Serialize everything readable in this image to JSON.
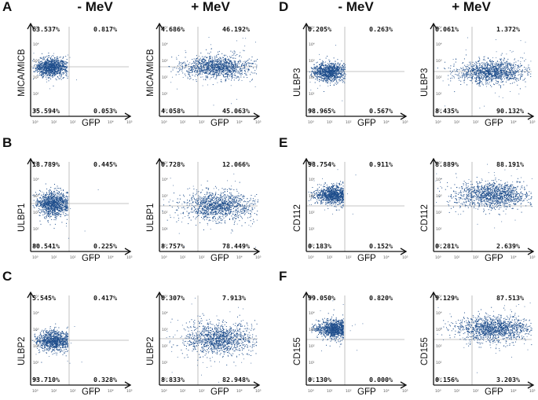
{
  "figure": {
    "panel_letters": [
      "A",
      "B",
      "C",
      "D",
      "E",
      "F"
    ],
    "condition_headers": [
      "- MeV",
      "+ MeV",
      "- MeV",
      "+ MeV"
    ],
    "x_axis_label": "GFP",
    "tick_labels": [
      "10⁰",
      "10¹",
      "10²",
      "10³",
      "10⁴",
      "10⁵"
    ],
    "panels": [
      {
        "letter": "A",
        "marker": "MICA/MICB",
        "minus": {
          "ul": "63.537%",
          "ur": "0.817%",
          "ll": "35.594%",
          "lr": "0.053%"
        },
        "plus": {
          "ul": "4.686%",
          "ur": "46.192%",
          "ll": "4.058%",
          "lr": "45.063%"
        }
      },
      {
        "letter": "B",
        "marker": "ULBP1",
        "minus": {
          "ul": "18.789%",
          "ur": "0.445%",
          "ll": "80.541%",
          "lr": "0.225%"
        },
        "plus": {
          "ul": "0.728%",
          "ur": "12.066%",
          "ll": "8.757%",
          "lr": "78.449%"
        }
      },
      {
        "letter": "C",
        "marker": "ULBP2",
        "minus": {
          "ul": "5.545%",
          "ur": "0.417%",
          "ll": "93.710%",
          "lr": "0.328%"
        },
        "plus": {
          "ul": "0.307%",
          "ur": "7.913%",
          "ll": "8.833%",
          "lr": "82.948%"
        }
      },
      {
        "letter": "D",
        "marker": "ULBP3",
        "minus": {
          "ul": "0.205%",
          "ur": "0.263%",
          "ll": "98.965%",
          "lr": "0.567%"
        },
        "plus": {
          "ul": "0.061%",
          "ur": "1.372%",
          "ll": "8.435%",
          "lr": "90.132%"
        }
      },
      {
        "letter": "E",
        "marker": "CD112",
        "minus": {
          "ul": "98.754%",
          "ur": "0.911%",
          "ll": "0.183%",
          "lr": "0.152%"
        },
        "plus": {
          "ul": "8.889%",
          "ur": "88.191%",
          "ll": "0.281%",
          "lr": "2.639%"
        }
      },
      {
        "letter": "F",
        "marker": "CD155",
        "minus": {
          "ul": "99.050%",
          "ur": "0.820%",
          "ll": "0.130%",
          "lr": "0.000%"
        },
        "plus": {
          "ul": "9.129%",
          "ur": "87.513%",
          "ll": "0.156%",
          "lr": "3.203%"
        }
      }
    ]
  },
  "colors": {
    "dots": "#1f4e8c",
    "axis": "#111111",
    "gate": "#b0b0b0",
    "tick": "#555555"
  }
}
